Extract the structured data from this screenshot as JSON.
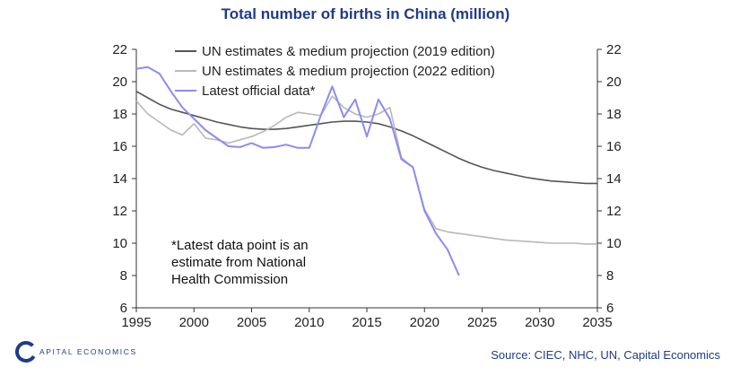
{
  "title": "Total number of births in China (million)",
  "source": "Source: CIEC, NHC, UN, Capital Economics",
  "logo_text": "APITAL ECONOMICS",
  "logo_letter": "C",
  "chart_data": {
    "type": "line",
    "title": "Total number of births in China (million)",
    "xlabel": "",
    "ylabel": "",
    "xlim": [
      1995,
      2035
    ],
    "ylim": [
      6,
      22
    ],
    "x_ticks": [
      1995,
      2000,
      2005,
      2010,
      2015,
      2020,
      2025,
      2030,
      2035
    ],
    "y_ticks": [
      6,
      8,
      10,
      12,
      14,
      16,
      18,
      20,
      22
    ],
    "legend_position": "top-center",
    "annotation": [
      "*Latest data point is an",
      "estimate from National",
      "Health Commission"
    ],
    "series": [
      {
        "name": "UN estimates & medium projection (2019 edition)",
        "color": "#555555",
        "x": [
          1995,
          1996,
          1997,
          1998,
          1999,
          2000,
          2001,
          2002,
          2003,
          2004,
          2005,
          2006,
          2007,
          2008,
          2009,
          2010,
          2011,
          2012,
          2013,
          2014,
          2015,
          2016,
          2017,
          2018,
          2019,
          2020,
          2021,
          2022,
          2023,
          2024,
          2025,
          2026,
          2027,
          2028,
          2029,
          2030,
          2031,
          2032,
          2033,
          2034,
          2035
        ],
        "y": [
          19.4,
          19.0,
          18.6,
          18.3,
          18.1,
          17.9,
          17.7,
          17.5,
          17.35,
          17.2,
          17.1,
          17.05,
          17.05,
          17.1,
          17.2,
          17.3,
          17.4,
          17.5,
          17.55,
          17.55,
          17.5,
          17.4,
          17.2,
          16.95,
          16.65,
          16.3,
          15.95,
          15.6,
          15.25,
          14.95,
          14.7,
          14.5,
          14.35,
          14.2,
          14.05,
          13.95,
          13.85,
          13.8,
          13.75,
          13.7,
          13.7
        ]
      },
      {
        "name": "UN estimates & medium projection (2022 edition)",
        "color": "#b8b8b8",
        "x": [
          1995,
          1996,
          1997,
          1998,
          1999,
          2000,
          2001,
          2002,
          2003,
          2004,
          2005,
          2006,
          2007,
          2008,
          2009,
          2010,
          2011,
          2012,
          2013,
          2014,
          2015,
          2016,
          2017,
          2018,
          2019,
          2020,
          2021,
          2022,
          2023,
          2024,
          2025,
          2026,
          2027,
          2028,
          2029,
          2030,
          2031,
          2032,
          2033,
          2034,
          2035
        ],
        "y": [
          18.8,
          18.0,
          17.5,
          17.0,
          16.7,
          17.4,
          16.5,
          16.4,
          16.2,
          16.4,
          16.6,
          16.9,
          17.3,
          17.8,
          18.1,
          18.0,
          17.9,
          19.1,
          18.4,
          18.0,
          17.8,
          18.0,
          18.4,
          15.3,
          14.7,
          12.1,
          10.9,
          10.7,
          10.6,
          10.5,
          10.4,
          10.3,
          10.2,
          10.15,
          10.1,
          10.05,
          10.0,
          10.0,
          10.0,
          9.95,
          9.95
        ]
      },
      {
        "name": "Latest official data*",
        "color": "#8c8cf0",
        "x": [
          1995,
          1996,
          1997,
          1998,
          1999,
          2000,
          2001,
          2002,
          2003,
          2004,
          2005,
          2006,
          2007,
          2008,
          2009,
          2010,
          2011,
          2012,
          2013,
          2014,
          2015,
          2016,
          2017,
          2018,
          2019,
          2020,
          2021,
          2022,
          2023
        ],
        "y": [
          20.8,
          20.9,
          20.5,
          19.4,
          18.4,
          17.7,
          17.0,
          16.5,
          16.0,
          15.95,
          16.2,
          15.9,
          15.95,
          16.1,
          15.9,
          15.9,
          17.9,
          19.7,
          17.8,
          18.9,
          16.6,
          18.9,
          17.7,
          15.2,
          14.7,
          12.0,
          10.6,
          9.6,
          8.0
        ]
      }
    ]
  }
}
